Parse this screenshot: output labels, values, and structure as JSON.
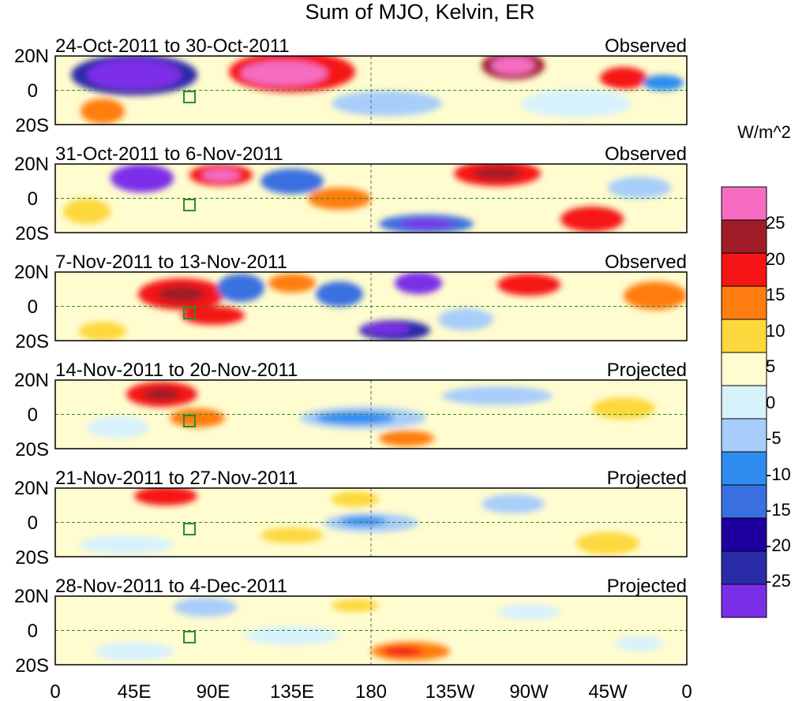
{
  "title": "Sum of MJO, Kelvin, ER",
  "colorbar": {
    "units": "W/m^2",
    "colors": [
      "#7b2ee8",
      "#2b2ba8",
      "#1e00a0",
      "#3a6fe0",
      "#2f8cf0",
      "#a8cdfa",
      "#d8f2fc",
      "#fffccf",
      "#fdd83c",
      "#ff7d10",
      "#f51414",
      "#a01c28",
      "#f56cc0"
    ],
    "tick_labels": [
      "-25",
      "-20",
      "-15",
      "-10",
      "-5",
      "0",
      "5",
      "10",
      "15",
      "20",
      "25"
    ]
  },
  "axes": {
    "lat_labels": [
      "20N",
      "0",
      "20S"
    ],
    "lon_labels": [
      "0",
      "45E",
      "90E",
      "135E",
      "180",
      "135W",
      "90W",
      "45W",
      "0"
    ]
  },
  "panels": [
    {
      "period": "24-Oct-2011 to 30-Oct-2011",
      "status": "Observed"
    },
    {
      "period": "31-Oct-2011 to 6-Nov-2011",
      "status": "Observed"
    },
    {
      "period": "7-Nov-2011 to 13-Nov-2011",
      "status": "Observed"
    },
    {
      "period": "14-Nov-2011 to 20-Nov-2011",
      "status": "Projected"
    },
    {
      "period": "21-Nov-2011 to 27-Nov-2011",
      "status": "Projected"
    },
    {
      "period": "28-Nov-2011 to 4-Dec-2011",
      "status": "Projected"
    }
  ]
}
